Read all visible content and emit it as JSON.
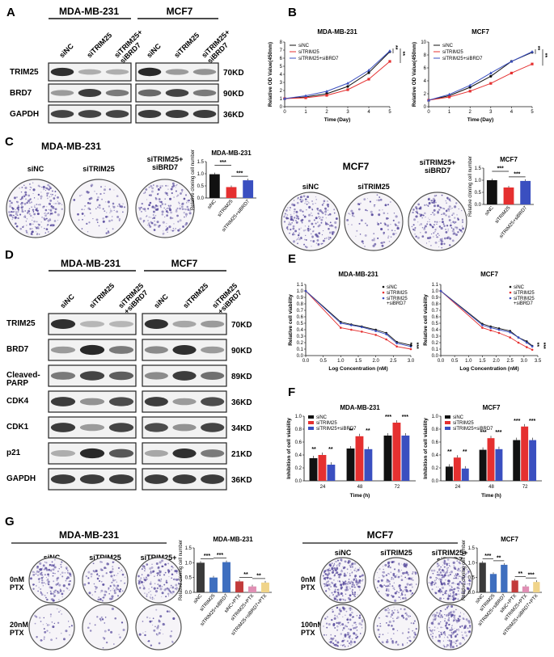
{
  "colors": {
    "black": "#111111",
    "red": "#e53030",
    "blue": "#3a4fc0",
    "gray": "#bdbdbd",
    "pink": "#d4668d",
    "pale": "#efd88c",
    "band": "#202020",
    "colony": "#5a4d9e"
  },
  "panels": {
    "A": "A",
    "B": "B",
    "C": "C",
    "D": "D",
    "E": "E",
    "F": "F",
    "G": "G"
  },
  "cell_lines": {
    "mda": "MDA-MB-231",
    "mcf": "MCF7"
  },
  "lanes3": [
    "siNC",
    "siTRIM25",
    "siTRIM25+\nsiBRD7"
  ],
  "lanesD": [
    "siNC",
    "siTRIM25",
    "siTRIM25\n+siBRD7"
  ],
  "A": {
    "proteins": [
      "TRIM25",
      "BRD7",
      "GAPDH"
    ],
    "sizes": [
      "70KD",
      "90KD",
      "36KD"
    ],
    "mda": [
      [
        0.9,
        0.2,
        0.2
      ],
      [
        0.3,
        0.85,
        0.5
      ],
      [
        0.8,
        0.8,
        0.8
      ]
    ],
    "mcf": [
      [
        0.95,
        0.3,
        0.35
      ],
      [
        0.6,
        0.8,
        0.5
      ],
      [
        0.85,
        0.85,
        0.85
      ]
    ]
  },
  "D": {
    "proteins": [
      "TRIM25",
      "BRD7",
      "Cleaved-\nPARP",
      "CDK4",
      "CDK1",
      "p21",
      "GAPDH"
    ],
    "sizes": [
      "70KD",
      "90KD",
      "89KD",
      "36KD",
      "34KD",
      "21KD",
      "36KD"
    ],
    "mda": [
      [
        0.9,
        0.15,
        0.15
      ],
      [
        0.3,
        0.95,
        0.5
      ],
      [
        0.5,
        0.8,
        0.65
      ],
      [
        0.85,
        0.35,
        0.75
      ],
      [
        0.85,
        0.3,
        0.8
      ],
      [
        0.2,
        0.95,
        0.7
      ],
      [
        0.85,
        0.85,
        0.85
      ]
    ],
    "mcf": [
      [
        0.9,
        0.25,
        0.3
      ],
      [
        0.4,
        0.9,
        0.3
      ],
      [
        0.4,
        0.85,
        0.55
      ],
      [
        0.85,
        0.3,
        0.75
      ],
      [
        0.75,
        0.35,
        0.8
      ],
      [
        0.25,
        0.9,
        0.5
      ],
      [
        0.85,
        0.85,
        0.85
      ]
    ]
  },
  "B": {
    "xlabel": "Time (Day)",
    "ylabel": "Relative OD Value(450nm)",
    "legend": [
      "siNC",
      "siTRIM25",
      "siTRIM25+siBRD7"
    ],
    "stars": [
      "**",
      "**"
    ],
    "charts": [
      {
        "title": "MDA-MB-231",
        "x": [
          0,
          1,
          2,
          3,
          4,
          5
        ],
        "ylim": [
          0,
          8
        ],
        "yticks": [
          0,
          1,
          2,
          3,
          4,
          5,
          6,
          7,
          8
        ],
        "series": [
          [
            1,
            1.2,
            1.6,
            2.5,
            4.2,
            6.8
          ],
          [
            1,
            1.1,
            1.4,
            2.1,
            3.4,
            5.6
          ],
          [
            1,
            1.35,
            1.9,
            2.9,
            4.5,
            6.9
          ]
        ]
      },
      {
        "title": "MCF7",
        "x": [
          0,
          1,
          2,
          3,
          4,
          5
        ],
        "ylim": [
          0,
          10
        ],
        "yticks": [
          0,
          2,
          4,
          6,
          8,
          10
        ],
        "series": [
          [
            1,
            1.7,
            3.0,
            4.7,
            7.0,
            8.4
          ],
          [
            1,
            1.5,
            2.4,
            3.6,
            5.2,
            6.6
          ],
          [
            1,
            1.9,
            3.3,
            5.2,
            7.0,
            8.5
          ]
        ]
      }
    ]
  },
  "C": {
    "ylabel": "Relative cloning cell number",
    "cats": [
      "siNC",
      "siTRIM25",
      "siTRIM25\n+siBRD7"
    ],
    "stars": [
      "***",
      "***"
    ],
    "charts": [
      {
        "title": "MDA-MB-231",
        "ylim": [
          0,
          1.5
        ],
        "yticks": [
          0,
          0.5,
          1.0,
          1.5
        ],
        "values": [
          0.98,
          0.45,
          0.73
        ]
      },
      {
        "title": "MCF7",
        "ylim": [
          0,
          1.5
        ],
        "yticks": [
          0,
          0.5,
          1.0,
          1.5
        ],
        "values": [
          1.0,
          0.7,
          0.97
        ]
      }
    ],
    "density_mda": [
      0.9,
      0.35,
      0.7
    ],
    "density_mcf": [
      0.8,
      0.35,
      0.75
    ]
  },
  "E": {
    "xlabel": "Log Concentration (nM)",
    "ylabel": "Relative cell viability",
    "legend": [
      "siNC",
      "siTRIM25",
      "siTRIM25\n+siBRD7"
    ],
    "stars": [
      "**",
      "***"
    ],
    "charts": [
      {
        "title": "MDA-MB-231",
        "xlim": [
          0,
          3.0
        ],
        "xticks": [
          0.0,
          0.5,
          1.0,
          1.5,
          2.0,
          2.5,
          3.0
        ],
        "yticks": [
          0.0,
          0.1,
          0.2,
          0.3,
          0.4,
          0.5,
          0.6,
          0.7,
          0.8,
          0.9,
          1.0,
          1.1
        ],
        "x": [
          0,
          1,
          1.3,
          1.6,
          2,
          2.3,
          2.6,
          3.0
        ],
        "series": [
          [
            1.0,
            0.52,
            0.48,
            0.45,
            0.4,
            0.35,
            0.21,
            0.16
          ],
          [
            1.0,
            0.43,
            0.4,
            0.37,
            0.32,
            0.25,
            0.14,
            0.1
          ],
          [
            1.0,
            0.5,
            0.47,
            0.44,
            0.38,
            0.33,
            0.19,
            0.14
          ]
        ]
      },
      {
        "title": "MCF7",
        "xlim": [
          0,
          3.5
        ],
        "xticks": [
          0.0,
          0.5,
          1.0,
          1.5,
          2.0,
          2.5,
          3.0,
          3.5
        ],
        "yticks": [
          0.0,
          0.1,
          0.2,
          0.3,
          0.4,
          0.5,
          0.6,
          0.7,
          0.8,
          0.9,
          1.0,
          1.1
        ],
        "x": [
          0,
          1.5,
          1.8,
          2.1,
          2.5,
          2.8,
          3.1,
          3.3
        ],
        "series": [
          [
            1.0,
            0.49,
            0.45,
            0.42,
            0.38,
            0.28,
            0.22,
            0.15
          ],
          [
            1.0,
            0.43,
            0.39,
            0.35,
            0.28,
            0.2,
            0.13,
            0.09
          ],
          [
            1.0,
            0.47,
            0.43,
            0.4,
            0.36,
            0.28,
            0.2,
            0.14
          ]
        ]
      }
    ]
  },
  "F": {
    "xlabel": "Time (h)",
    "ylabel": "Inhibition of cell viability",
    "legend": [
      "siNC",
      "siTRIM25",
      "siTRIM25+siBRD7"
    ],
    "categories": [
      "24",
      "48",
      "72"
    ],
    "charts": [
      {
        "title": "MDA-MB-231",
        "ylim": [
          0,
          1.0
        ],
        "yticks": [
          0.0,
          0.2,
          0.4,
          0.6,
          0.8,
          1.0
        ],
        "series": [
          [
            0.35,
            0.5,
            0.7
          ],
          [
            0.4,
            0.69,
            0.9
          ],
          [
            0.25,
            0.49,
            0.7
          ]
        ],
        "stars": [
          [
            "**",
            "**"
          ],
          [
            "**",
            "**"
          ],
          [
            "***",
            "***"
          ]
        ]
      },
      {
        "title": "MCF7",
        "ylim": [
          0,
          1.0
        ],
        "yticks": [
          0.0,
          0.2,
          0.4,
          0.6,
          0.8,
          1.0
        ],
        "series": [
          [
            0.22,
            0.48,
            0.63
          ],
          [
            0.36,
            0.66,
            0.84
          ],
          [
            0.19,
            0.49,
            0.63
          ]
        ],
        "stars": [
          [
            "**",
            "**"
          ],
          [
            "***",
            "***"
          ],
          [
            "***",
            "***"
          ]
        ]
      }
    ]
  },
  "G": {
    "ylabel": "Relative cloning cell number",
    "cats": [
      "siNC",
      "siTRIM25",
      "siTRIM25+siBRD7",
      "siNC+PTX",
      "siTRIM25+PTX",
      "siTRIM25+siBRD7+PTX"
    ],
    "lanes": [
      "siNC",
      "siTRIM25",
      "siTRIM25+\nsiBRD7"
    ],
    "charts": [
      {
        "title": "MDA-MB-231",
        "ylim": [
          0,
          1.5
        ],
        "yticks": [
          0,
          0.5,
          1.0,
          1.5
        ],
        "values": [
          1.0,
          0.5,
          1.02,
          0.37,
          0.2,
          0.33
        ],
        "stars": [
          "***",
          "***",
          "**",
          "**"
        ],
        "rows": [
          "0nM\nPTX",
          "20nM\nPTX"
        ]
      },
      {
        "title": "MCF7",
        "ylim": [
          0,
          1.5
        ],
        "yticks": [
          0,
          0.5,
          1.0,
          1.5
        ],
        "values": [
          1.0,
          0.62,
          0.93,
          0.4,
          0.2,
          0.35
        ],
        "stars": [
          "***",
          "**",
          "**",
          "***"
        ],
        "rows": [
          "0nM\nPTX",
          "100nM\nPTX"
        ]
      }
    ],
    "density": {
      "mda": [
        [
          0.55,
          0.4,
          0.5
        ],
        [
          0.15,
          0.1,
          0.15
        ]
      ],
      "mcf": [
        [
          0.85,
          0.55,
          0.8
        ],
        [
          0.5,
          0.3,
          0.7
        ]
      ]
    }
  }
}
